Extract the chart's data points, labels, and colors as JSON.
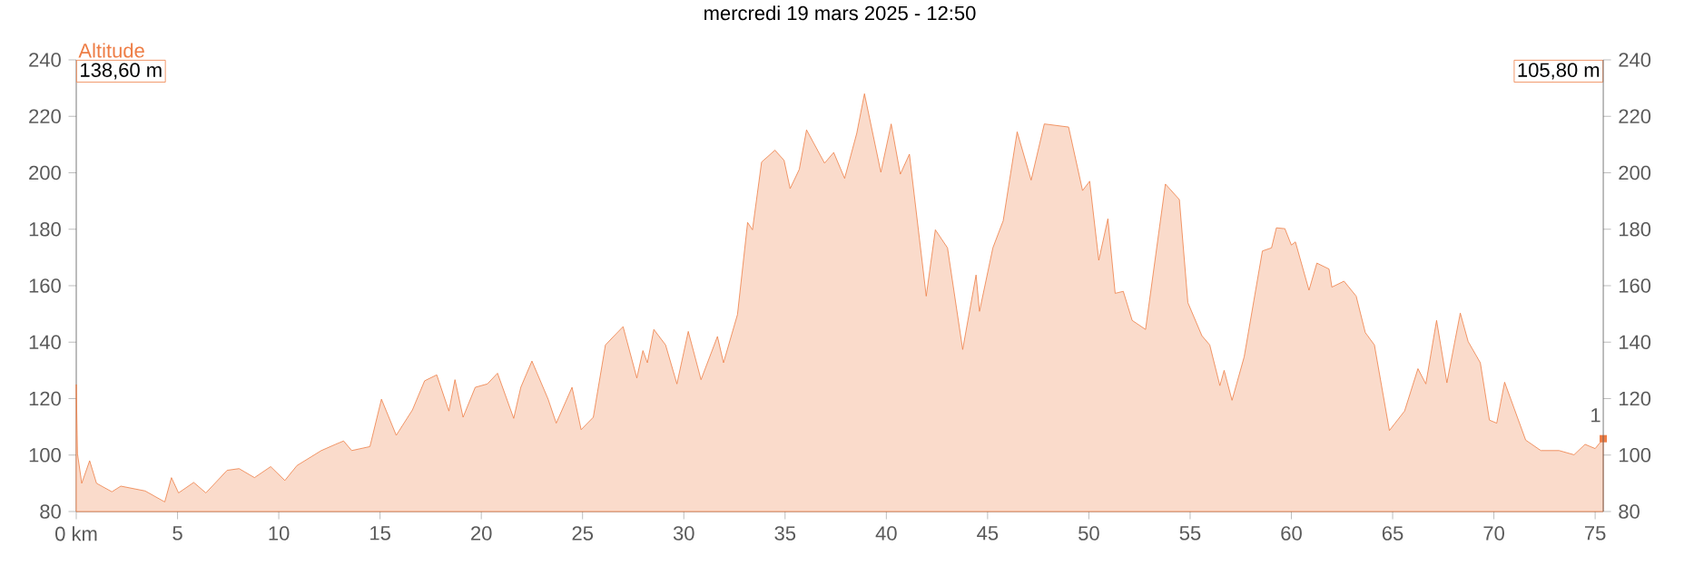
{
  "chart_data": {
    "type": "area",
    "title": "mercredi 19 mars 2025 - 12:50",
    "ylabel": "Altitude",
    "x": [
      0,
      0.06,
      0.27,
      0.66,
      1.0,
      1.76,
      2.2,
      3.4,
      4.37,
      4.7,
      5.05,
      5.8,
      6.4,
      7.45,
      8.04,
      8.8,
      9.6,
      10.3,
      10.9,
      12.1,
      12.8,
      13.2,
      13.6,
      14.5,
      15.07,
      15.8,
      16.6,
      17.2,
      17.8,
      18.4,
      18.7,
      19.1,
      19.7,
      20.3,
      20.8,
      21.6,
      21.95,
      22.5,
      23.3,
      23.7,
      24.48,
      24.93,
      25.53,
      26.13,
      27.0,
      27.68,
      27.98,
      28.2,
      28.52,
      29.1,
      29.66,
      30.22,
      30.85,
      31.66,
      31.96,
      32.65,
      33.15,
      33.39,
      33.84,
      34.5,
      34.95,
      35.25,
      35.7,
      36.06,
      36.95,
      37.4,
      37.94,
      38.54,
      38.92,
      39.73,
      40.24,
      40.69,
      41.14,
      41.97,
      42.42,
      43.02,
      43.77,
      44.43,
      44.6,
      45.26,
      45.77,
      46.46,
      47.15,
      47.8,
      49.0,
      49.69,
      50.04,
      50.49,
      50.94,
      51.3,
      51.7,
      52.14,
      52.8,
      53.78,
      54.47,
      54.89,
      55.58,
      55.97,
      56.47,
      56.68,
      57.07,
      57.67,
      58.57,
      59.02,
      59.26,
      59.68,
      60.0,
      60.2,
      60.87,
      61.26,
      61.86,
      62.0,
      62.6,
      63.2,
      63.65,
      64.1,
      64.84,
      65.59,
      66.25,
      66.64,
      67.17,
      67.68,
      68.34,
      68.73,
      69.33,
      69.78,
      70.14,
      70.53,
      71.57,
      72.32,
      73.22,
      73.96,
      74.5,
      75.0,
      75.4
    ],
    "series": [
      {
        "color": "#ee7d45",
        "values": [
          125,
          100.5,
          90,
          98,
          90,
          87,
          89,
          87.3,
          83.4,
          92,
          86.6,
          90.3,
          86.6,
          94.6,
          95.2,
          92,
          95.9,
          91,
          96.3,
          101.6,
          103.8,
          105,
          101.6,
          103,
          119.8,
          107,
          116,
          126.3,
          128.4,
          115.6,
          126.7,
          113.4,
          124,
          125.2,
          129,
          113,
          124,
          133.3,
          119.8,
          111.3,
          124,
          109,
          113.4,
          139,
          145.5,
          127.3,
          137,
          132.7,
          144.5,
          139,
          125.2,
          143.8,
          126.7,
          142,
          132.7,
          149.8,
          182.4,
          179.8,
          203.8,
          208,
          204.4,
          194.4,
          201.2,
          215.2,
          203.4,
          207.2,
          198,
          214,
          228,
          200.2,
          217.3,
          199.5,
          206.6,
          156.3,
          179.8,
          173.4,
          137.4,
          163.8,
          150.9,
          173.4,
          183,
          214.5,
          197.4,
          217.3,
          216.2,
          193.7,
          197,
          169,
          183.7,
          157.3,
          158,
          147.7,
          144.5,
          196,
          190.5,
          154,
          142.3,
          139,
          124.6,
          130,
          119.4,
          134.8,
          172.3,
          173.4,
          180.5,
          180.2,
          174.4,
          175.5,
          158.4,
          168,
          165.9,
          159.5,
          161.6,
          156.3,
          143.4,
          139,
          108.7,
          115.6,
          130.6,
          125.2,
          147.7,
          125.6,
          150.3,
          140.2,
          132.7,
          112.4,
          111.3,
          125.8,
          105.3,
          101.6,
          101.6,
          100.1,
          103.8,
          102.3,
          105.8
        ]
      }
    ],
    "xlim": [
      0,
      75.4
    ],
    "xticks": [
      {
        "value": 0,
        "label": "0 km"
      },
      5,
      10,
      15,
      20,
      25,
      30,
      35,
      40,
      45,
      50,
      55,
      60,
      65,
      70,
      75
    ],
    "ylim": [
      80,
      240
    ],
    "yticks": [
      80,
      100,
      120,
      140,
      160,
      180,
      200,
      220,
      240
    ],
    "y2lim": [
      80,
      240
    ],
    "y2ticks": [
      80,
      100,
      120,
      140,
      160,
      180,
      200,
      220,
      240
    ],
    "annotations": [
      "138,60 m",
      "105,80 m",
      {
        "text": "1",
        "x": 75.4,
        "y": 105.8
      }
    ]
  }
}
